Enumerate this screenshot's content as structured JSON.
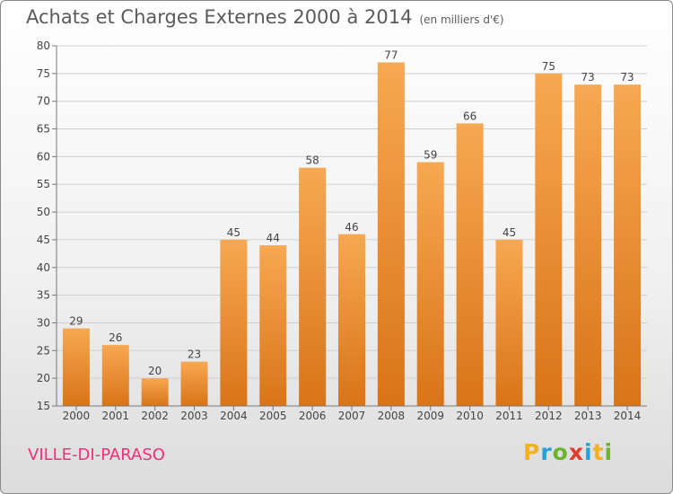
{
  "chart_data": {
    "type": "bar",
    "title": "Achats et Charges Externes 2000 à 2014",
    "subtitle": "(en milliers d'€)",
    "categories": [
      "2000",
      "2001",
      "2002",
      "2003",
      "2004",
      "2005",
      "2006",
      "2007",
      "2008",
      "2009",
      "2010",
      "2011",
      "2012",
      "2013",
      "2014"
    ],
    "values": [
      29,
      26,
      20,
      23,
      45,
      44,
      58,
      46,
      77,
      59,
      66,
      45,
      75,
      73,
      73
    ],
    "ylim": [
      15,
      80
    ],
    "yticks": [
      15,
      20,
      25,
      30,
      35,
      40,
      45,
      50,
      55,
      60,
      65,
      70,
      75,
      80
    ],
    "grid": true,
    "bar_color_light": "#f7a852",
    "bar_color_dark": "#d97418"
  },
  "footer": {
    "place": "VILLE-DI-PARASO",
    "logo": [
      "P",
      "r",
      "o",
      "x",
      "i",
      "t",
      "i"
    ]
  }
}
